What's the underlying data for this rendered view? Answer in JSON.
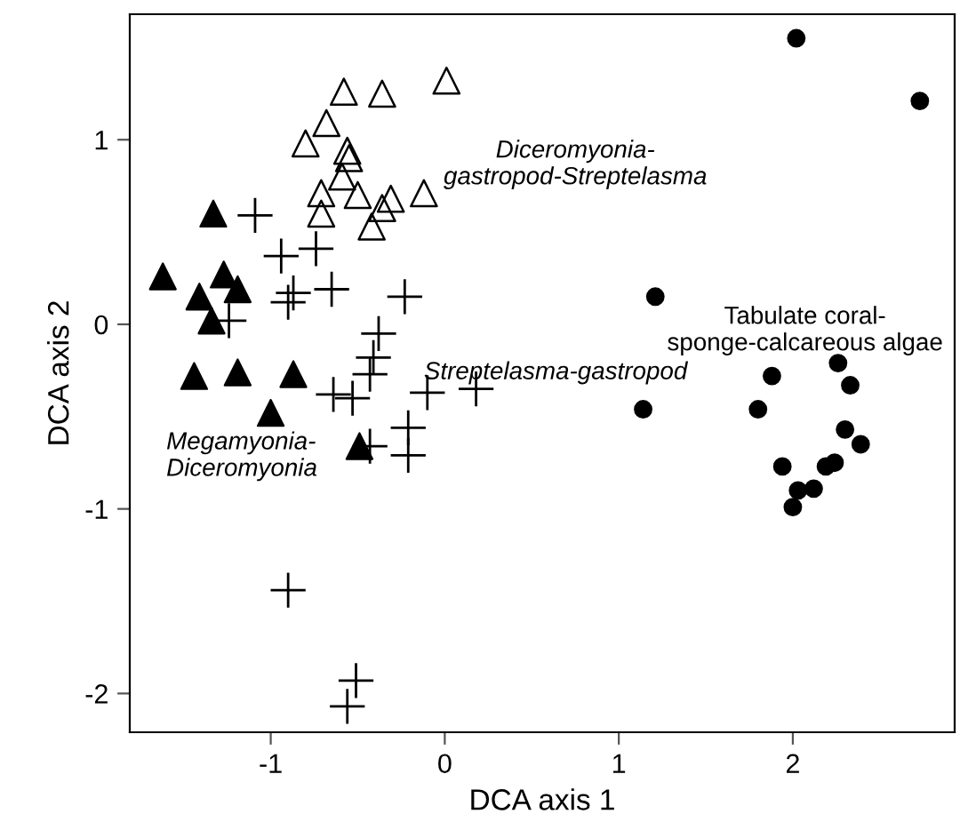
{
  "chart_data": {
    "type": "scatter",
    "xlabel": "DCA axis 1",
    "ylabel": "DCA axis 2",
    "xlim": [
      -1.81,
      2.93
    ],
    "ylim": [
      -2.21,
      1.68
    ],
    "xticks": [
      -1,
      0,
      1,
      2
    ],
    "yticks": [
      -2,
      -1,
      0,
      1
    ],
    "grid": false,
    "legend": false,
    "annotations": [
      "Diceromyonia-\ngastropod-Streptelasma",
      "Tabulate coral-\nsponge-calcareous algae",
      "Streptelasma-gastropod",
      "Megamyonia-\nDiceromyonia"
    ],
    "series": [
      {
        "color": "#000000",
        "marker": "triangle",
        "x": [
          -1.33,
          -1.62,
          -1.27,
          -1.19,
          -1.41,
          -1.34,
          -1.44,
          -1.19,
          -0.87,
          -1.0,
          -0.49
        ],
        "values": [
          0.6,
          0.26,
          0.27,
          0.19,
          0.15,
          0.02,
          -0.28,
          -0.26,
          -0.27,
          -0.48,
          -0.66
        ]
      },
      {
        "color": "#000000",
        "marker": "triangle",
        "x": [
          -0.58,
          -0.36,
          0.01,
          -0.68,
          -0.8,
          -0.56,
          -0.55,
          -0.59,
          -0.71,
          -0.5,
          -0.31,
          -0.12,
          -0.71,
          -0.36,
          -0.42
        ],
        "values": [
          1.26,
          1.25,
          1.32,
          1.09,
          0.98,
          0.94,
          0.9,
          0.8,
          0.71,
          0.7,
          0.68,
          0.71,
          0.6,
          0.63,
          0.53
        ]
      },
      {
        "color": "#000000",
        "marker": "cross",
        "x": [
          -1.09,
          -0.94,
          -0.74,
          -0.87,
          -0.9,
          -0.65,
          -0.23,
          -1.24,
          -0.38,
          -0.41,
          -0.43,
          -0.64,
          -0.53,
          -0.1,
          0.18,
          -0.43,
          -0.21,
          -0.21,
          -0.9,
          -0.51,
          -0.56
        ],
        "values": [
          0.59,
          0.37,
          0.41,
          0.17,
          0.12,
          0.19,
          0.15,
          0.02,
          -0.05,
          -0.18,
          -0.27,
          -0.38,
          -0.4,
          -0.37,
          -0.35,
          -0.66,
          -0.56,
          -0.71,
          -1.44,
          -1.93,
          -2.07
        ]
      },
      {
        "color": "#000000",
        "marker": "circle",
        "x": [
          2.02,
          2.73,
          1.21,
          1.14,
          1.88,
          1.8,
          2.26,
          2.33,
          2.3,
          2.39,
          1.94,
          2.19,
          2.24,
          2.03,
          2.12,
          2.0
        ],
        "values": [
          1.55,
          1.21,
          0.15,
          -0.46,
          -0.28,
          -0.46,
          -0.21,
          -0.33,
          -0.57,
          -0.65,
          -0.77,
          -0.77,
          -0.75,
          -0.9,
          -0.89,
          -0.99
        ]
      }
    ]
  }
}
